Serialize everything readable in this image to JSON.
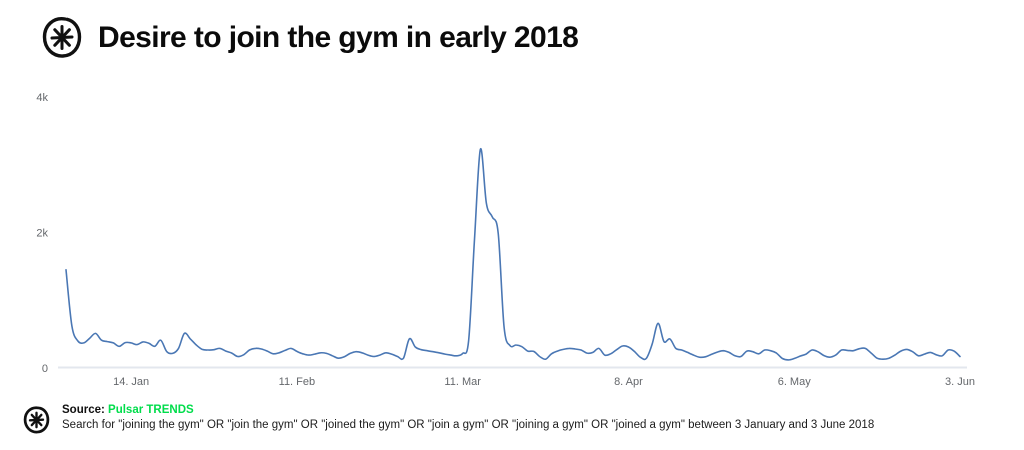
{
  "header": {
    "title": "Desire to join the gym in early 2018",
    "logo": "pulsar-asterisk-circle"
  },
  "colors": {
    "line": "#4a77b4",
    "accent_green": "#00dd4b",
    "axis_text": "#64676b",
    "baseline": "#e3e7ee",
    "title_text": "#0b0b0b"
  },
  "footer": {
    "source_label": "Source:",
    "source_name": "Pulsar TRENDS",
    "query": "Search for \"joining the gym\" OR \"join the gym\" OR \"joined the gym\" OR \"join a gym\" OR \"joining a gym\" OR \"joined a gym\" between 3 January and 3 June 2018"
  },
  "chart_data": {
    "type": "line",
    "title": "Desire to join the gym in early 2018",
    "xlabel": "",
    "ylabel": "",
    "x_start_date": "3 January 2018",
    "x_end_date": "3 June 2018",
    "x_unit": "day",
    "ylim": [
      0,
      4000
    ],
    "grid": false,
    "legend": false,
    "peak": {
      "approx_date": "mid-March 2018",
      "value": 3230
    },
    "y_ticks": [
      {
        "label": "0",
        "value": 0
      },
      {
        "label": "2k",
        "value": 2000
      },
      {
        "label": "4k",
        "value": 4000
      }
    ],
    "x_ticks": [
      {
        "label": "14. Jan",
        "day": 11
      },
      {
        "label": "11. Feb",
        "day": 39
      },
      {
        "label": "11. Mar",
        "day": 67
      },
      {
        "label": "8. Apr",
        "day": 95
      },
      {
        "label": "6. May",
        "day": 123
      },
      {
        "label": "3. Jun",
        "day": 151
      }
    ],
    "values": [
      1450,
      620,
      400,
      370,
      440,
      510,
      410,
      390,
      370,
      320,
      375,
      370,
      345,
      385,
      365,
      320,
      410,
      245,
      215,
      290,
      510,
      430,
      340,
      275,
      265,
      270,
      290,
      250,
      220,
      170,
      195,
      265,
      290,
      280,
      250,
      210,
      225,
      260,
      290,
      245,
      210,
      190,
      205,
      225,
      215,
      180,
      145,
      165,
      215,
      240,
      225,
      190,
      170,
      190,
      225,
      205,
      170,
      145,
      430,
      310,
      270,
      255,
      240,
      225,
      205,
      190,
      180,
      215,
      400,
      1900,
      3230,
      2430,
      2230,
      1990,
      600,
      330,
      340,
      315,
      250,
      245,
      170,
      130,
      210,
      250,
      275,
      290,
      280,
      265,
      220,
      230,
      290,
      190,
      210,
      270,
      325,
      310,
      245,
      160,
      140,
      350,
      660,
      390,
      430,
      290,
      265,
      230,
      190,
      160,
      165,
      200,
      235,
      255,
      230,
      180,
      170,
      250,
      240,
      210,
      265,
      255,
      220,
      140,
      120,
      140,
      175,
      205,
      265,
      240,
      185,
      160,
      190,
      265,
      260,
      255,
      285,
      290,
      220,
      145,
      130,
      145,
      190,
      250,
      275,
      240,
      180,
      205,
      230,
      195,
      180,
      265,
      250,
      170
    ]
  }
}
